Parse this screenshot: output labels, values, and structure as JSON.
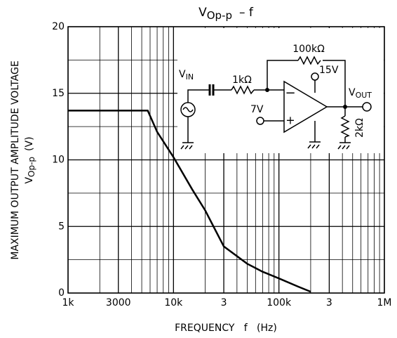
{
  "chart_data": {
    "type": "line",
    "title": {
      "symbol": "V",
      "subscript": "Op-p",
      "suffix": "– f"
    },
    "ylabel": {
      "line1": "MAXIMUM OUTPUT AMPLITUDE VOLTAGE",
      "symbol": "V",
      "subscript": "Op-p",
      "unit": "(V)"
    },
    "xlabel": "FREQUENCY   f   (Hz)",
    "xscale": "log",
    "x": [
      1000,
      5700,
      7000,
      10000,
      15000,
      20000,
      30000,
      50000,
      70000,
      100000,
      150000,
      200000
    ],
    "values": [
      13.7,
      13.7,
      12.1,
      10.2,
      7.8,
      6.2,
      3.5,
      2.2,
      1.6,
      1.1,
      0.5,
      0.1
    ],
    "color": "#000000",
    "xlim": [
      1000,
      1000000
    ],
    "ylim": [
      0,
      20
    ],
    "xticks": [
      {
        "value": 1000,
        "label": "1k"
      },
      3000,
      {
        "value": 10000,
        "label": "10k"
      },
      {
        "value": 30000,
        "label": "3"
      },
      {
        "value": 100000,
        "label": "100k"
      },
      {
        "value": 300000,
        "label": "3"
      },
      {
        "value": 1000000,
        "label": "1M"
      }
    ],
    "x_minor_ticks": [
      2000,
      4000,
      5000,
      6000,
      7000,
      8000,
      9000,
      20000,
      40000,
      50000,
      60000,
      70000,
      80000,
      90000,
      200000,
      400000,
      500000,
      600000,
      700000,
      800000,
      900000
    ],
    "yticks": [
      0,
      5,
      10,
      15,
      20
    ],
    "y_minor_ticks": [
      2.5,
      7.5,
      12.5,
      17.5
    ],
    "grid": true,
    "circuit": {
      "vin": {
        "symbol": "V",
        "subscript": "IN"
      },
      "r_in": "1kΩ",
      "r_fb": "100kΩ",
      "supply": "15V",
      "vout": {
        "symbol": "V",
        "subscript": "OUT"
      },
      "bias": "7V",
      "r_load": "2kΩ",
      "minus": "−",
      "plus": "+"
    }
  }
}
